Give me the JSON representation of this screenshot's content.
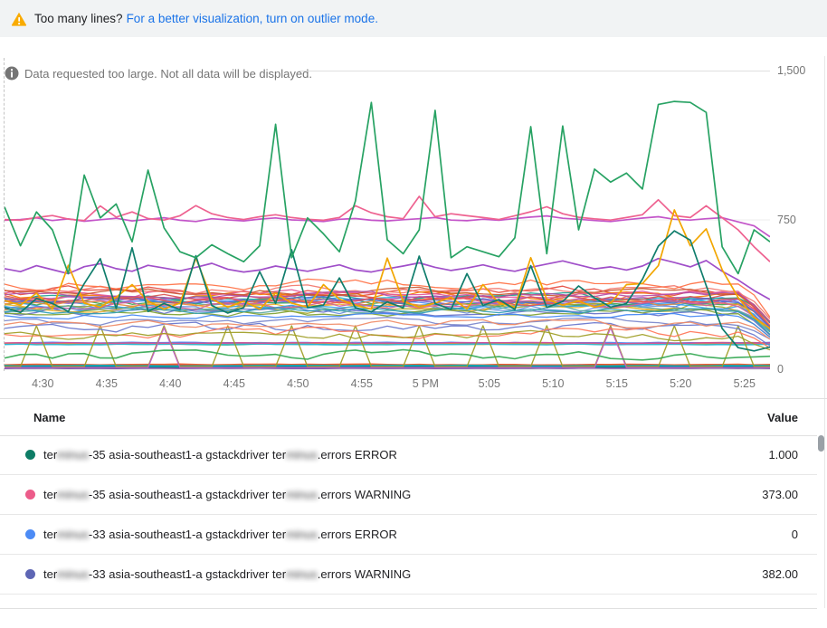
{
  "banner": {
    "text": "Too many lines?",
    "link": "For a better visualization, turn on outlier mode.",
    "warning_color": "#F9AB00",
    "link_color": "#1A73E8",
    "background": "#F1F3F4"
  },
  "notice": {
    "text": "Data requested too large. Not all data will be displayed.",
    "icon_color": "#757575"
  },
  "chart_data": {
    "type": "line",
    "grid": "horizontal",
    "legend_position": "table-below",
    "ylim": [
      0,
      1500
    ],
    "y_ticks": [
      "1,500",
      "750",
      "0"
    ],
    "x_ticks": [
      "4:30",
      "4:35",
      "4:40",
      "4:45",
      "4:50",
      "4:55",
      "5 PM",
      "5:05",
      "5:10",
      "5:15",
      "5:20",
      "5:25"
    ],
    "x_range_minutes": [
      267,
      327
    ],
    "tick_minutes": [
      270,
      275,
      280,
      285,
      290,
      295,
      300,
      305,
      310,
      315,
      320,
      325
    ],
    "points_per_series": 49,
    "series": [
      {
        "name": "line-magenta-750",
        "color": "#C355C9",
        "values": [
          748,
          752,
          760,
          747,
          755,
          743,
          751,
          758,
          745,
          753,
          761,
          748,
          742,
          756,
          750,
          745,
          754,
          760,
          750,
          747,
          742,
          753,
          757,
          748,
          745,
          751,
          756,
          762,
          749,
          746,
          753,
          748,
          757,
          764,
          770,
          758,
          753,
          747,
          742,
          751,
          759,
          766,
          753,
          749,
          756,
          761,
          740,
          720,
          665
        ]
      },
      {
        "name": "line-pink-750",
        "color": "#EE6290",
        "values": [
          752,
          748,
          762,
          772,
          754,
          747,
          820,
          764,
          790,
          757,
          749,
          771,
          822,
          781,
          762,
          752,
          766,
          776,
          762,
          753,
          748,
          762,
          821,
          786,
          766,
          756,
          868,
          766,
          781,
          771,
          762,
          752,
          771,
          791,
          816,
          781,
          763,
          755,
          749,
          762,
          776,
          851,
          771,
          762,
          821,
          761,
          700,
          615,
          540
        ]
      },
      {
        "name": "line-purple-500",
        "color": "#A04FC9",
        "values": [
          505,
          490,
          520,
          500,
          480,
          515,
          530,
          505,
          492,
          522,
          508,
          494,
          512,
          532,
          502,
          488,
          498,
          518,
          504,
          492,
          508,
          524,
          498,
          488,
          504,
          518,
          534,
          512,
          496,
          508,
          524,
          504,
          492,
          512,
          528,
          544,
          524,
          504,
          514,
          498,
          518,
          556,
          536,
          514,
          546,
          492,
          448,
          395,
          350
        ]
      },
      {
        "name": "line-gold",
        "color": "#F2A600",
        "values": [
          345,
          322,
          382,
          302,
          522,
          332,
          312,
          362,
          425,
          342,
          302,
          332,
          558,
          352,
          312,
          342,
          302,
          382,
          332,
          312,
          425,
          352,
          322,
          302,
          558,
          342,
          312,
          332,
          362,
          302,
          425,
          332,
          312,
          560,
          352,
          322,
          342,
          312,
          332,
          425,
          430,
          520,
          800,
          620,
          705,
          500,
          360,
          260,
          205
        ]
      },
      {
        "name": "line-darkteal",
        "color": "#107D6C",
        "values": [
          310,
          285,
          355,
          330,
          290,
          430,
          555,
          305,
          610,
          290,
          330,
          300,
          570,
          320,
          282,
          310,
          490,
          330,
          600,
          310,
          322,
          458,
          308,
          288,
          338,
          308,
          568,
          330,
          300,
          480,
          320,
          350,
          300,
          520,
          310,
          340,
          418,
          358,
          312,
          330,
          452,
          618,
          695,
          648,
          420,
          205,
          108,
          92,
          112
        ]
      },
      {
        "name": "line-green-spiky",
        "color": "#27A263",
        "values": [
          815,
          620,
          790,
          700,
          480,
          975,
          760,
          830,
          640,
          1000,
          710,
          590,
          560,
          625,
          580,
          540,
          620,
          1230,
          560,
          760,
          680,
          590,
          845,
          1340,
          650,
          580,
          700,
          1300,
          560,
          615,
          590,
          565,
          660,
          1218,
          580,
          1222,
          700,
          1005,
          940,
          985,
          905,
          1330,
          1345,
          1340,
          1290,
          615,
          480,
          700,
          640
        ]
      }
    ],
    "cluster_series": [
      {
        "color": "#E5493D",
        "base": 392,
        "amp": 40,
        "seed": 1,
        "drop": true
      },
      {
        "color": "#FF7043",
        "base": 350,
        "amp": 48,
        "seed": 2,
        "drop": true
      },
      {
        "color": "#F57C00",
        "base": 372,
        "amp": 38,
        "seed": 3,
        "drop": true
      },
      {
        "color": "#4E8DF5",
        "base": 330,
        "amp": 45,
        "seed": 4,
        "drop": true
      },
      {
        "color": "#6C8EDB",
        "base": 300,
        "amp": 40,
        "seed": 5,
        "drop": true
      },
      {
        "color": "#25B8D0",
        "base": 342,
        "amp": 30,
        "seed": 6,
        "drop": true
      },
      {
        "color": "#1BA394",
        "base": 362,
        "amp": 34,
        "seed": 7,
        "drop": true
      },
      {
        "color": "#A6A62A",
        "base": 312,
        "amp": 44,
        "seed": 8,
        "drop": true
      },
      {
        "color": "#3FA655",
        "base": 332,
        "amp": 36,
        "seed": 9,
        "drop": true
      },
      {
        "color": "#E2579B",
        "base": 382,
        "amp": 30,
        "seed": 10,
        "drop": true
      },
      {
        "color": "#BE5FC8",
        "base": 352,
        "amp": 26,
        "seed": 11,
        "drop": true
      },
      {
        "color": "#6671C9",
        "base": 292,
        "amp": 38,
        "seed": 12,
        "drop": true
      },
      {
        "color": "#F0B429",
        "base": 322,
        "amp": 40,
        "seed": 13,
        "drop": true
      },
      {
        "color": "#8E5BC9",
        "base": 342,
        "amp": 28,
        "seed": 14,
        "drop": true
      },
      {
        "color": "#F2766B",
        "base": 402,
        "amp": 34,
        "seed": 15,
        "drop": true
      },
      {
        "color": "#34A0E8",
        "base": 312,
        "amp": 30,
        "seed": 16,
        "drop": true
      },
      {
        "color": "#D9534F",
        "base": 362,
        "amp": 42,
        "seed": 17,
        "drop": true
      },
      {
        "color": "#E8883C",
        "base": 332,
        "amp": 36,
        "seed": 18,
        "drop": true
      },
      {
        "color": "#5CA8A0",
        "base": 302,
        "amp": 32,
        "seed": 19,
        "drop": true
      },
      {
        "color": "#C9562F",
        "base": 388,
        "amp": 30,
        "seed": 20,
        "drop": true
      },
      {
        "color": "#7FA234",
        "base": 282,
        "amp": 34,
        "seed": 21,
        "drop": true
      },
      {
        "color": "#4A6FD0",
        "base": 352,
        "amp": 30,
        "seed": 22,
        "drop": true
      },
      {
        "color": "#D4619A",
        "base": 318,
        "amp": 36,
        "seed": 23,
        "drop": true
      },
      {
        "color": "#2E9DB5",
        "base": 292,
        "amp": 28,
        "seed": 24,
        "drop": true
      },
      {
        "color": "#B04FA8",
        "base": 372,
        "amp": 26,
        "seed": 25,
        "drop": true
      },
      {
        "color": "#EF5350",
        "base": 342,
        "amp": 32,
        "seed": 26,
        "drop": true
      },
      {
        "color": "#FF7043",
        "base": 432,
        "amp": 48,
        "seed": 27,
        "drop": true
      },
      {
        "color": "#6674CC",
        "base": 208,
        "amp": 42,
        "seed": 28,
        "drop": true
      },
      {
        "color": "#FF7557",
        "base": 188,
        "amp": 46,
        "seed": 29,
        "drop": true
      },
      {
        "color": "#9E9D24",
        "base": 166,
        "amp": 36,
        "seed": 30,
        "drop": true
      },
      {
        "color": "#7986CB",
        "base": 238,
        "amp": 30,
        "seed": 31,
        "drop": true
      },
      {
        "color": "#EF8A65",
        "base": 228,
        "amp": 36,
        "seed": 32,
        "drop": true
      },
      {
        "color": "#4285F4",
        "base": 268,
        "amp": 22,
        "seed": 50,
        "drop": true
      },
      {
        "color": "#E04B3F",
        "base": 130,
        "amp": 6,
        "seed": 33,
        "band": "flat"
      },
      {
        "color": "#18A999",
        "base": 126,
        "amp": 5,
        "seed": 34,
        "band": "flat"
      },
      {
        "color": "#4285F4",
        "base": 133,
        "amp": 5,
        "seed": 35,
        "band": "flat"
      },
      {
        "color": "#F0B000",
        "base": 128,
        "amp": 5,
        "seed": 36,
        "band": "flat"
      },
      {
        "color": "#2BB6D8",
        "base": 124,
        "amp": 5,
        "seed": 37,
        "band": "flat"
      },
      {
        "color": "#D6509B",
        "base": 131,
        "amp": 4,
        "seed": 38,
        "band": "flat"
      },
      {
        "color": "#34A853",
        "base": 72,
        "amp": 38,
        "seed": 39,
        "band": "meander"
      },
      {
        "color": "#9E9D24",
        "base": 13,
        "peak": 218,
        "period": 4,
        "phase": 2,
        "band": "spike"
      },
      {
        "color": "#BE5FC8",
        "base": 8,
        "peak": 208,
        "period": 28,
        "phase": 10,
        "band": "spike"
      },
      {
        "color": "#DB4437",
        "base": 20,
        "amp": 4,
        "seed": 40,
        "band": "bottom"
      },
      {
        "color": "#4285F4",
        "base": 10,
        "amp": 3,
        "seed": 41,
        "band": "bottom"
      },
      {
        "color": "#C2185B",
        "base": 16,
        "amp": 3,
        "seed": 42,
        "band": "bottom"
      },
      {
        "color": "#5F6368",
        "base": 7,
        "amp": 3,
        "seed": 43,
        "band": "bottom"
      },
      {
        "color": "#00897B",
        "base": 13,
        "amp": 3,
        "seed": 44,
        "band": "bottom"
      },
      {
        "color": "#F4511E",
        "base": 23,
        "amp": 4,
        "seed": 45,
        "band": "bottom"
      },
      {
        "color": "#7B52AB",
        "base": 5,
        "amp": 2,
        "seed": 46,
        "band": "bottom"
      },
      {
        "color": "#00ACC1",
        "base": 18,
        "amp": 3,
        "seed": 47,
        "band": "bottom"
      }
    ]
  },
  "table": {
    "headers": [
      "Name",
      "Value"
    ],
    "rows": [
      {
        "dot_color": "#0E7D66",
        "segments": [
          [
            "ter",
            false
          ],
          [
            "minus",
            true
          ],
          [
            "-35 asia-southeast1-a gstackdriver ter",
            false
          ],
          [
            "minus",
            true
          ],
          [
            ".errors ERROR",
            false
          ]
        ],
        "value": "1.000"
      },
      {
        "dot_color": "#EC5C8A",
        "segments": [
          [
            "ter",
            false
          ],
          [
            "minus",
            true
          ],
          [
            "-35 asia-southeast1-a gstackdriver ter",
            false
          ],
          [
            "minus",
            true
          ],
          [
            ".errors WARNING",
            false
          ]
        ],
        "value": "373.00"
      },
      {
        "dot_color": "#4C8BF5",
        "segments": [
          [
            "ter",
            false
          ],
          [
            "minus",
            true
          ],
          [
            "-33 asia-southeast1-a gstackdriver ter",
            false
          ],
          [
            "minus",
            true
          ],
          [
            ".errors ERROR",
            false
          ]
        ],
        "value": "0"
      },
      {
        "dot_color": "#5E66B4",
        "segments": [
          [
            "ter",
            false
          ],
          [
            "minus",
            true
          ],
          [
            "-33 asia-southeast1-a gstackdriver ter",
            false
          ],
          [
            "minus",
            true
          ],
          [
            ".errors WARNING",
            false
          ]
        ],
        "value": "382.00"
      }
    ]
  }
}
